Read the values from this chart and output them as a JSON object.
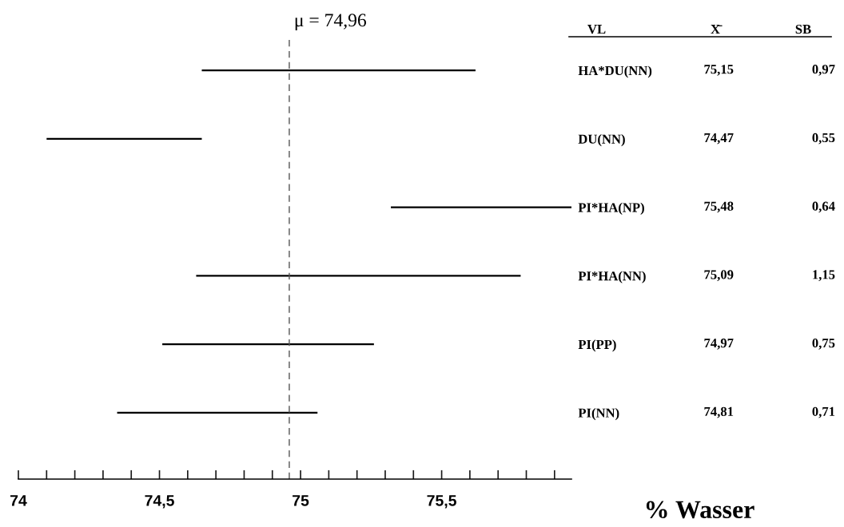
{
  "chart_data": {
    "type": "bar",
    "orientation": "horizontal",
    "categories": [
      "HA*DU(NN)",
      "DU(NN)",
      "PI*HA(NP)",
      "PI*HA(NN)",
      "PI(PP)",
      "PI(NN)"
    ],
    "base": [
      74.65,
      74.1,
      75.32,
      74.63,
      74.51,
      74.35
    ],
    "values": [
      0.97,
      0.55,
      0.64,
      1.15,
      0.75,
      0.71
    ],
    "value_labels": [
      "0,97",
      "0,55",
      "0,64",
      "1,15",
      "0,75",
      "0,71"
    ],
    "color": "#000000",
    "xlim": [
      74,
      75.96
    ],
    "xticks": [
      74,
      {
        "value": 74.1,
        "label": null
      },
      {
        "value": 74.2,
        "label": null
      },
      {
        "value": 74.3,
        "label": null
      },
      {
        "value": 74.4,
        "label": null
      },
      {
        "value": 74.5,
        "label": "74,5"
      },
      {
        "value": 74.6,
        "label": null
      },
      {
        "value": 74.7,
        "label": null
      },
      {
        "value": 74.8,
        "label": null
      },
      {
        "value": 74.9,
        "label": null
      },
      75,
      {
        "value": 75.1,
        "label": null
      },
      {
        "value": 75.2,
        "label": null
      },
      {
        "value": 75.3,
        "label": null
      },
      {
        "value": 75.4,
        "label": null
      },
      {
        "value": 75.5,
        "label": "75,5"
      },
      {
        "value": 75.6,
        "label": null
      },
      {
        "value": 75.7,
        "label": null
      },
      {
        "value": 75.8,
        "label": null
      },
      {
        "value": 75.9,
        "label": null
      }
    ],
    "xlabel": "% Wasser",
    "ref_lines": [
      {
        "axis": "x",
        "value": 74.96,
        "label": "μ = 74,96",
        "color": "#555555",
        "line_style": "dashed"
      }
    ],
    "annotations": [
      "VL",
      "X̄",
      "SB",
      "75,15",
      "74,47",
      "75,48",
      "75,09",
      "74,97",
      "74,81"
    ],
    "grid": false,
    "legend": false
  }
}
